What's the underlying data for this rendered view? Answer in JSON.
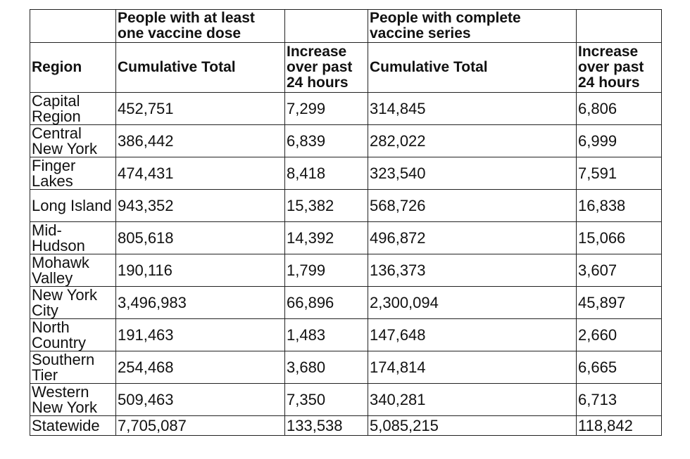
{
  "table": {
    "header_groups": {
      "blank_left": "",
      "first_dose": "People with at least one vaccine dose",
      "first_dose_spacer": "",
      "complete_series": "People with complete vaccine series",
      "complete_series_spacer": ""
    },
    "sub_headers": {
      "region": "Region",
      "first_dose_cumulative": "Cumulative Total",
      "first_dose_increase": "Increase over past 24 hours",
      "complete_cumulative": "Cumulative Total",
      "complete_increase": "Increase over past 24 hours"
    },
    "rows": [
      {
        "region": "Capital Region",
        "dose_total": "452,751",
        "dose_increase": "7,299",
        "complete_total": "314,845",
        "complete_increase": "6,806"
      },
      {
        "region": "Central New York",
        "dose_total": "386,442",
        "dose_increase": "6,839",
        "complete_total": "282,022",
        "complete_increase": "6,999"
      },
      {
        "region": "Finger Lakes",
        "dose_total": "474,431",
        "dose_increase": "8,418",
        "complete_total": "323,540",
        "complete_increase": "7,591"
      },
      {
        "region": "Long Island",
        "dose_total": "943,352",
        "dose_increase": "15,382",
        "complete_total": "568,726",
        "complete_increase": "16,838"
      },
      {
        "region": "Mid-Hudson",
        "dose_total": "805,618",
        "dose_increase": "14,392",
        "complete_total": "496,872",
        "complete_increase": "15,066"
      },
      {
        "region": "Mohawk Valley",
        "dose_total": "190,116",
        "dose_increase": "1,799",
        "complete_total": "136,373",
        "complete_increase": "3,607"
      },
      {
        "region": "New York City",
        "dose_total": "3,496,983",
        "dose_increase": "66,896",
        "complete_total": "2,300,094",
        "complete_increase": "45,897"
      },
      {
        "region": "North Country",
        "dose_total": "191,463",
        "dose_increase": "1,483",
        "complete_total": "147,648",
        "complete_increase": "2,660"
      },
      {
        "region": "Southern Tier",
        "dose_total": "254,468",
        "dose_increase": "3,680",
        "complete_total": "174,814",
        "complete_increase": "6,665"
      },
      {
        "region": "Western New York",
        "dose_total": "509,463",
        "dose_increase": "7,350",
        "complete_total": "340,281",
        "complete_increase": "6,713"
      }
    ],
    "total": {
      "region": "Statewide",
      "dose_total": "7,705,087",
      "dose_increase": "133,538",
      "complete_total": "5,085,215",
      "complete_increase": "118,842"
    }
  }
}
